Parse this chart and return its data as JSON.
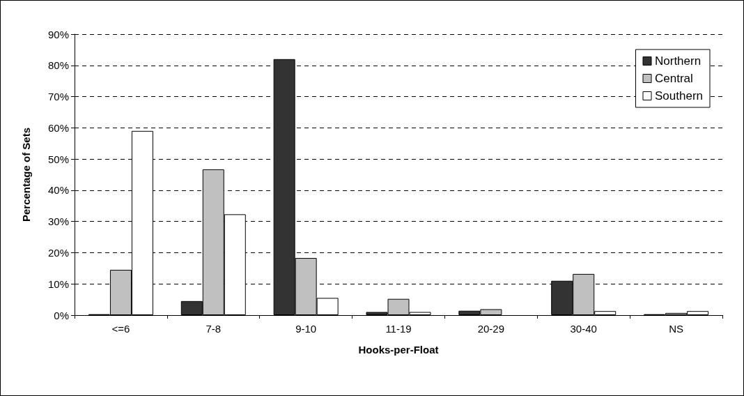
{
  "chart_data": {
    "type": "bar",
    "xlabel": "Hooks-per-Float",
    "ylabel": "Percentage of Sets",
    "categories": [
      "<=6",
      "7-8",
      "9-10",
      "11-19",
      "20-29",
      "30-40",
      "NS"
    ],
    "series": [
      {
        "name": "Northern",
        "color": "#333333",
        "values": [
          0.3,
          4.5,
          82,
          1,
          1.4,
          11,
          0.3
        ]
      },
      {
        "name": "Central",
        "color": "#c0c0c0",
        "values": [
          14.5,
          46.7,
          18.3,
          5.2,
          1.9,
          13.2,
          0.7
        ]
      },
      {
        "name": "Southern",
        "color": "#ffffff",
        "values": [
          59,
          32.3,
          5.5,
          1,
          null,
          1.3,
          1.3
        ]
      }
    ],
    "ylim": [
      0,
      90
    ],
    "yticks": [
      {
        "value": 0,
        "label": "0%"
      },
      {
        "value": 10,
        "label": "10%"
      },
      {
        "value": 20,
        "label": "20%"
      },
      {
        "value": 30,
        "label": "30%"
      },
      {
        "value": 40,
        "label": "40%"
      },
      {
        "value": 50,
        "label": "50%"
      },
      {
        "value": 60,
        "label": "60%"
      },
      {
        "value": 70,
        "label": "70%"
      },
      {
        "value": 80,
        "label": "80%"
      },
      {
        "value": 90,
        "label": "90%"
      }
    ],
    "grid": "y",
    "legend": "top right"
  }
}
